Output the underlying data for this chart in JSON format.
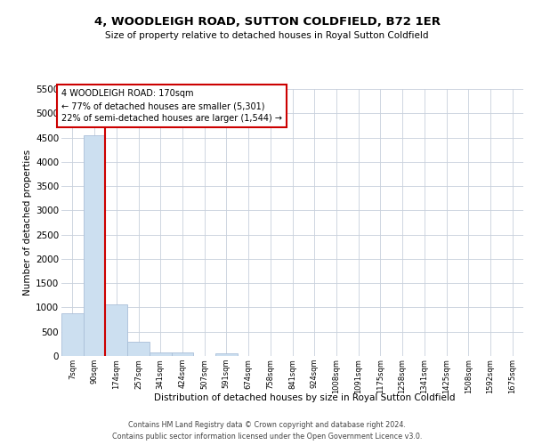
{
  "title": "4, WOODLEIGH ROAD, SUTTON COLDFIELD, B72 1ER",
  "subtitle": "Size of property relative to detached houses in Royal Sutton Coldfield",
  "xlabel": "Distribution of detached houses by size in Royal Sutton Coldfield",
  "ylabel": "Number of detached properties",
  "footer_line1": "Contains HM Land Registry data © Crown copyright and database right 2024.",
  "footer_line2": "Contains public sector information licensed under the Open Government Licence v3.0.",
  "bar_labels": [
    "7sqm",
    "90sqm",
    "174sqm",
    "257sqm",
    "341sqm",
    "424sqm",
    "507sqm",
    "591sqm",
    "674sqm",
    "758sqm",
    "841sqm",
    "924sqm",
    "1008sqm",
    "1091sqm",
    "1175sqm",
    "1258sqm",
    "1341sqm",
    "1425sqm",
    "1508sqm",
    "1592sqm",
    "1675sqm"
  ],
  "bar_values": [
    880,
    4540,
    1060,
    290,
    80,
    65,
    0,
    55,
    0,
    0,
    0,
    0,
    0,
    0,
    0,
    0,
    0,
    0,
    0,
    0,
    0
  ],
  "bar_color": "#ccdff0",
  "bar_edge_color": "#aabfd8",
  "annotation_line1": "4 WOODLEIGH ROAD: 170sqm",
  "annotation_line2": "← 77% of detached houses are smaller (5,301)",
  "annotation_line3": "22% of semi-detached houses are larger (1,544) →",
  "vline_color": "#cc0000",
  "annotation_box_color": "#ffffff",
  "annotation_box_edge": "#cc0000",
  "ylim": [
    0,
    5500
  ],
  "yticks": [
    0,
    500,
    1000,
    1500,
    2000,
    2500,
    3000,
    3500,
    4000,
    4500,
    5000,
    5500
  ],
  "background_color": "#ffffff",
  "grid_color": "#c8d0dc"
}
